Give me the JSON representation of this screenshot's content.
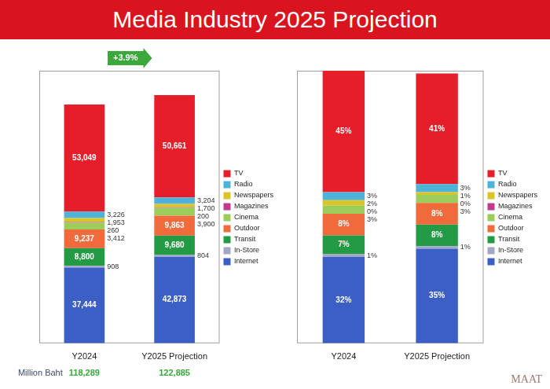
{
  "title": "Media Industry 2025 Projection",
  "logo": "MAAT",
  "chart_data": [
    {
      "type": "bar",
      "stacked": true,
      "data_labels": true,
      "legend": "right",
      "tick_labels": "x",
      "grid": false,
      "categories": [
        "Y2024",
        "Y2025 Projection"
      ],
      "ylim": [
        0,
        135000
      ],
      "annotation": "+3.9%",
      "totals": {
        "label": "Million Baht",
        "values": [
          118289,
          122885
        ],
        "value_labels": [
          "118,289",
          "122,885"
        ]
      },
      "series": [
        {
          "name": "TV",
          "color": "#e61e2a",
          "values": [
            53049,
            50661
          ],
          "value_labels": [
            "53,049",
            "50,661"
          ]
        },
        {
          "name": "Radio",
          "color": "#4fb3d9",
          "values": [
            3226,
            3204
          ],
          "value_labels": [
            "3,226",
            "3,204"
          ]
        },
        {
          "name": "Newspapers",
          "color": "#d9c42a",
          "values": [
            1953,
            1700
          ],
          "value_labels": [
            "1,953",
            "1,700"
          ]
        },
        {
          "name": "Magazines",
          "color": "#c2388f",
          "values": [
            260,
            200
          ],
          "value_labels": [
            "260",
            "200"
          ]
        },
        {
          "name": "Cinema",
          "color": "#9ccc5a",
          "values": [
            3412,
            3900
          ],
          "value_labels": [
            "3,412",
            "3,900"
          ]
        },
        {
          "name": "Outdoor",
          "color": "#f06a3c",
          "values": [
            9237,
            9863
          ],
          "value_labels": [
            "9,237",
            "9,863"
          ]
        },
        {
          "name": "Transit",
          "color": "#239b44",
          "values": [
            8800,
            9680
          ],
          "value_labels": [
            "8,800",
            "9,680"
          ]
        },
        {
          "name": "In-Store",
          "color": "#a6a6c8",
          "values": [
            908,
            804
          ],
          "value_labels": [
            "908",
            "804"
          ]
        },
        {
          "name": "Internet",
          "color": "#3b5fc4",
          "values": [
            37444,
            42873
          ],
          "value_labels": [
            "37,444",
            "42,873"
          ]
        }
      ]
    },
    {
      "type": "bar",
      "stacked": true,
      "data_labels": true,
      "legend": "right",
      "tick_labels": "x",
      "grid": false,
      "categories": [
        "Y2024",
        "Y2025 Projection"
      ],
      "ylim": [
        0,
        101
      ],
      "series": [
        {
          "name": "TV",
          "color": "#e61e2a",
          "values": [
            45,
            41
          ],
          "value_labels": [
            "45%",
            "41%"
          ]
        },
        {
          "name": "Radio",
          "color": "#4fb3d9",
          "values": [
            3,
            3
          ],
          "value_labels": [
            "3%",
            "3%"
          ]
        },
        {
          "name": "Newspapers",
          "color": "#d9c42a",
          "values": [
            2,
            1
          ],
          "value_labels": [
            "2%",
            "1%"
          ]
        },
        {
          "name": "Magazines",
          "color": "#c2388f",
          "values": [
            0,
            0
          ],
          "value_labels": [
            "0%",
            "0%"
          ]
        },
        {
          "name": "Cinema",
          "color": "#9ccc5a",
          "values": [
            3,
            3
          ],
          "value_labels": [
            "3%",
            "3%"
          ]
        },
        {
          "name": "Outdoor",
          "color": "#f06a3c",
          "values": [
            8,
            8
          ],
          "value_labels": [
            "8%",
            "8%"
          ]
        },
        {
          "name": "Transit",
          "color": "#239b44",
          "values": [
            7,
            8
          ],
          "value_labels": [
            "7%",
            "8%"
          ]
        },
        {
          "name": "In-Store",
          "color": "#a6a6c8",
          "values": [
            1,
            1
          ],
          "value_labels": [
            "1%",
            "1%"
          ]
        },
        {
          "name": "Internet",
          "color": "#3b5fc4",
          "values": [
            32,
            35
          ],
          "value_labels": [
            "32%",
            "35%"
          ]
        }
      ]
    }
  ]
}
